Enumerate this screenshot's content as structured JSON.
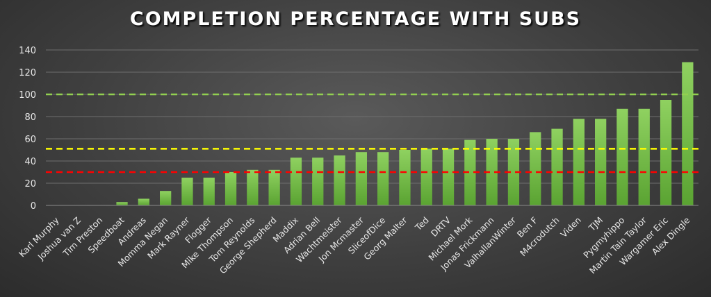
{
  "chart_data": {
    "type": "bar",
    "title": "COMPLETION PERCENTAGE WITH SUBS",
    "categories": [
      "Karl Murphy",
      "Joshua van Z",
      "Tim Preston",
      "Speedboat",
      "Andreas",
      "Momma Negan",
      "Mark Rayner",
      "Flogger",
      "Mike Thompson",
      "Tom Reynolds",
      "George Shepherd",
      "Maddix",
      "Adrian Bell",
      "Wachtmeister",
      "Jon Mcmaster",
      "SliceofDice",
      "Georg Malter",
      "Ted",
      "DRTV",
      "Michael Mork",
      "Jonas Frickmann",
      "ValhallanWinter",
      "Ben F",
      "M4crodutch",
      "Viden",
      "TJM",
      "Pygmyhippo",
      "Martin Tain Taylor",
      "Wargamer Eric",
      "Alex Dingle"
    ],
    "values": [
      0,
      0,
      0,
      3,
      6,
      13,
      25,
      25,
      30,
      32,
      32,
      43,
      43,
      45,
      48,
      48,
      50,
      51,
      51,
      59,
      60,
      60,
      66,
      69,
      78,
      78,
      87,
      87,
      95,
      129
    ],
    "ylim": [
      0,
      140
    ],
    "yticks": [
      0,
      20,
      40,
      60,
      80,
      100,
      120,
      140
    ],
    "grid": true,
    "bar_color": "#6db33f",
    "reference_lines": [
      {
        "value": 100,
        "color": "#92d050"
      },
      {
        "value": 51,
        "color": "#ffff00"
      },
      {
        "value": 30,
        "color": "#ff0000"
      }
    ]
  }
}
